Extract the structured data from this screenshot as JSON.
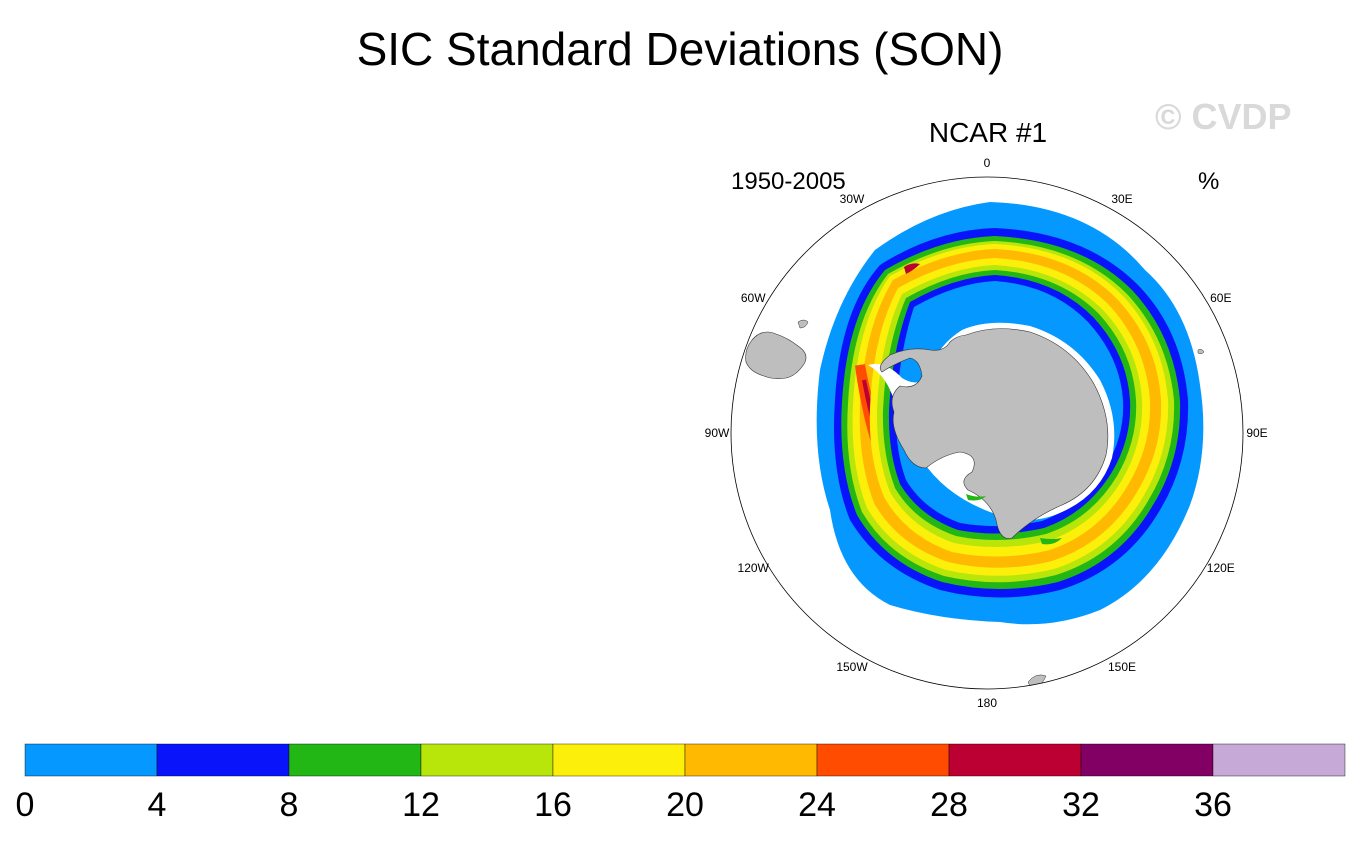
{
  "title": "SIC Standard Deviations (SON)",
  "watermark": "© CVDP",
  "panel": {
    "title": "NCAR #1",
    "period": "1950-2005",
    "units": "%"
  },
  "map": {
    "projection": "south-polar-stereographic",
    "center_lat": -90,
    "longitude_labels": [
      "0",
      "30E",
      "60E",
      "90E",
      "120E",
      "150E",
      "180",
      "150W",
      "120W",
      "90W",
      "60W",
      "30W"
    ],
    "longitude_label_angles_deg": [
      0,
      30,
      60,
      90,
      120,
      150,
      180,
      210,
      240,
      270,
      300,
      330
    ],
    "land_color": "#bebebe",
    "ice_edge_color": "#ffffff"
  },
  "colorbar": {
    "tick_labels": [
      "0",
      "4",
      "8",
      "12",
      "16",
      "20",
      "24",
      "28",
      "32",
      "36"
    ],
    "colors": [
      "#0598ff",
      "#0a14fa",
      "#22b714",
      "#b8e60a",
      "#fcf00a",
      "#feb900",
      "#ff4c00",
      "#bd0033",
      "#820064",
      "#c6a9d6"
    ]
  }
}
